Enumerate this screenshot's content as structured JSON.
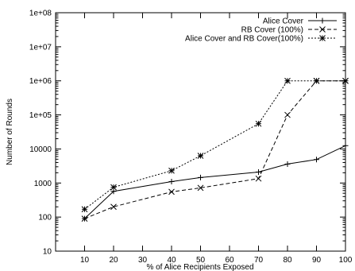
{
  "chart_data": {
    "type": "line",
    "xlabel": "% of Alice Recipients Exposed",
    "ylabel": "Number of Rounds",
    "x_ticks": [
      "10",
      "20",
      "30",
      "40",
      "50",
      "60",
      "70",
      "80",
      "90",
      "100"
    ],
    "y_ticks": [
      "10",
      "100",
      "1000",
      "10000",
      "1e+05",
      "1e+06",
      "1e+07",
      "1e+08"
    ],
    "xlim": [
      0,
      100
    ],
    "ylim": [
      10,
      100000000
    ],
    "y_scale": "log",
    "grid": false,
    "legend_position": "top-right",
    "series": [
      {
        "name": "Alice Cover",
        "marker": "plus",
        "line": "solid",
        "x": [
          10,
          20,
          40,
          50,
          70,
          80,
          90,
          100
        ],
        "y": [
          90,
          570,
          1100,
          1450,
          2100,
          3600,
          4900,
          12500
        ]
      },
      {
        "name": "RB Cover (100%)",
        "marker": "cross",
        "line": "dashed",
        "x": [
          10,
          20,
          40,
          50,
          70,
          80,
          90,
          100
        ],
        "y": [
          90,
          200,
          550,
          720,
          1350,
          100000,
          1000000,
          1000000
        ]
      },
      {
        "name": "Alice Cover and RB Cover(100%)",
        "marker": "star",
        "line": "dotted",
        "x": [
          10,
          20,
          40,
          50,
          70,
          80,
          90,
          100
        ],
        "y": [
          170,
          750,
          2300,
          6300,
          55000,
          1000000,
          1000000,
          1000000
        ]
      }
    ]
  }
}
